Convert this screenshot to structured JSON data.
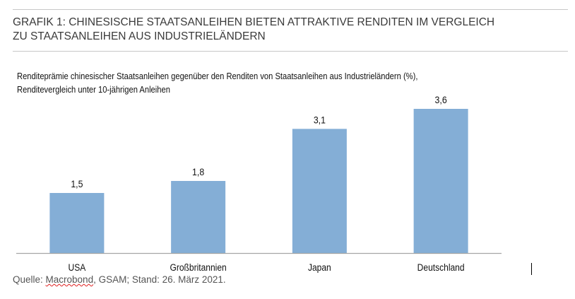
{
  "heading": {
    "line1": "GRAFIK 1: CHINESISCHE STAATSANLEIHEN BIETEN ATTRAKTIVE RENDITEN IM VERGLEICH",
    "line2": "ZU STAATSANLEIHEN AUS INDUSTRIELÄNDERN"
  },
  "chart_data": {
    "type": "bar",
    "title": "",
    "subtitle_line1": "Renditeprämie chinesischer Staatsanleihen gegenüber den Renditen von Staatsanleihen aus Industrieländern (%),",
    "subtitle_line2": "Renditevergleich unter 10-jährigen Anleihen",
    "categories": [
      "USA",
      "Großbritannien",
      "Japan",
      "Deutschland"
    ],
    "values": [
      1.5,
      1.8,
      3.1,
      3.6
    ],
    "data_labels": [
      "1,5",
      "1,8",
      "3,1",
      "3,6"
    ],
    "xlabel": "",
    "ylabel": "",
    "ylim": [
      0,
      3.6
    ],
    "grid": false,
    "bar_color": "#84aed6"
  },
  "source": {
    "prefix": "Quelle: ",
    "macrobond": "Macrobond",
    "rest": ", GSAM; Stand: 26. März 2021."
  }
}
